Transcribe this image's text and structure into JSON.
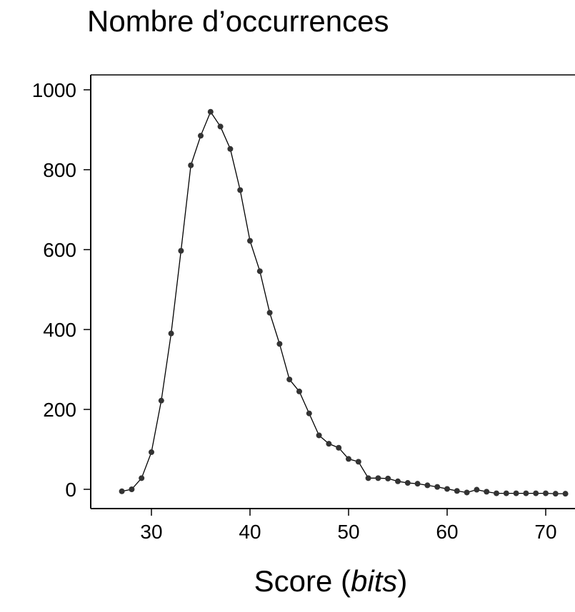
{
  "chart_data": {
    "type": "line",
    "title": "Nombre d’occurrences",
    "xlabel": {
      "prefix": "Score (",
      "italic": "bits",
      "suffix": ")"
    },
    "ylabel": "",
    "xlim": [
      24,
      74.5
    ],
    "ylim": [
      -50,
      1040
    ],
    "x_ticks": [
      30,
      40,
      50,
      60,
      70
    ],
    "y_ticks": [
      0,
      200,
      400,
      600,
      800,
      1000
    ],
    "grid": false,
    "legend": "none",
    "colors": {
      "line": "#000000",
      "marker": "#333333",
      "axis": "#000000"
    },
    "series": [
      {
        "x": [
          27,
          28,
          29,
          30,
          31,
          32,
          33,
          34,
          35,
          36,
          37,
          38,
          39,
          40,
          41,
          42,
          43,
          44,
          45,
          46,
          47,
          48,
          49,
          50,
          51,
          52,
          53,
          54,
          55,
          56,
          57,
          58,
          59,
          60,
          61,
          62,
          63,
          64,
          65,
          66,
          67,
          68,
          69,
          70,
          71,
          72
        ],
        "values": [
          -5,
          0,
          28,
          93,
          222,
          390,
          597,
          811,
          885,
          945,
          908,
          852,
          749,
          622,
          546,
          442,
          364,
          275,
          245,
          190,
          135,
          114,
          104,
          76,
          69,
          28,
          28,
          27,
          20,
          16,
          14,
          10,
          6,
          1,
          -4,
          -8,
          -1,
          -6,
          -10,
          -10,
          -10,
          -10,
          -10,
          -10,
          -11,
          -11
        ]
      }
    ]
  }
}
